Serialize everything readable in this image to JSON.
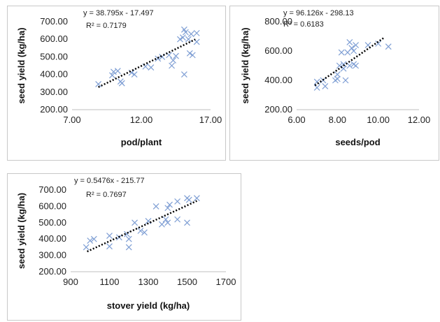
{
  "chart_data": [
    {
      "type": "scatter",
      "xlabel": "pod/plant",
      "ylabel": "seed yield (kg/ha)",
      "xlim": [
        7,
        17
      ],
      "ylim": [
        200,
        700
      ],
      "x_ticks": [
        "7.00",
        "12.00",
        "17.00"
      ],
      "y_ticks": [
        "200.00",
        "300.00",
        "400.00",
        "500.00",
        "600.00",
        "700.00"
      ],
      "trendline": {
        "equation": "y = 38.795x - 17.497",
        "r2": "R² = 0.7179",
        "slope": 38.795,
        "intercept": -17.497,
        "x_range": [
          8.9,
          15.9
        ]
      },
      "marker_color": "#7f9fd4",
      "points": [
        {
          "x": 8.9,
          "y": 345
        },
        {
          "x": 9.9,
          "y": 395
        },
        {
          "x": 10.0,
          "y": 415
        },
        {
          "x": 10.3,
          "y": 420
        },
        {
          "x": 10.5,
          "y": 360
        },
        {
          "x": 10.6,
          "y": 350
        },
        {
          "x": 11.3,
          "y": 410
        },
        {
          "x": 11.5,
          "y": 400
        },
        {
          "x": 12.3,
          "y": 445
        },
        {
          "x": 12.7,
          "y": 440
        },
        {
          "x": 13.2,
          "y": 490
        },
        {
          "x": 13.5,
          "y": 500
        },
        {
          "x": 14.0,
          "y": 510
        },
        {
          "x": 14.2,
          "y": 450
        },
        {
          "x": 14.3,
          "y": 480
        },
        {
          "x": 14.5,
          "y": 505
        },
        {
          "x": 14.8,
          "y": 600
        },
        {
          "x": 15.0,
          "y": 610
        },
        {
          "x": 15.1,
          "y": 655
        },
        {
          "x": 15.1,
          "y": 400
        },
        {
          "x": 15.2,
          "y": 640
        },
        {
          "x": 15.4,
          "y": 600
        },
        {
          "x": 15.5,
          "y": 520
        },
        {
          "x": 15.6,
          "y": 630
        },
        {
          "x": 15.7,
          "y": 510
        },
        {
          "x": 16.0,
          "y": 635
        },
        {
          "x": 16.0,
          "y": 585
        }
      ]
    },
    {
      "type": "scatter",
      "xlabel": "seeds/pod",
      "ylabel": "seed yield (kg/ha)",
      "xlim": [
        6,
        12
      ],
      "ylim": [
        200,
        800
      ],
      "x_ticks": [
        "6.00",
        "8.00",
        "10.00",
        "12.00"
      ],
      "y_ticks": [
        "200.00",
        "400.00",
        "600.00",
        "800.00"
      ],
      "trendline": {
        "equation": "y = 96.126x - 298.13",
        "r2": "R² = 0.6183",
        "slope": 96.126,
        "intercept": -298.13,
        "x_range": [
          6.9,
          10.3
        ]
      },
      "marker_color": "#7f9fd4",
      "points": [
        {
          "x": 7.0,
          "y": 350
        },
        {
          "x": 7.0,
          "y": 390
        },
        {
          "x": 7.3,
          "y": 400
        },
        {
          "x": 7.4,
          "y": 360
        },
        {
          "x": 7.9,
          "y": 400
        },
        {
          "x": 8.0,
          "y": 440
        },
        {
          "x": 8.0,
          "y": 410
        },
        {
          "x": 8.1,
          "y": 500
        },
        {
          "x": 8.2,
          "y": 590
        },
        {
          "x": 8.3,
          "y": 480
        },
        {
          "x": 8.3,
          "y": 510
        },
        {
          "x": 8.4,
          "y": 400
        },
        {
          "x": 8.5,
          "y": 590
        },
        {
          "x": 8.6,
          "y": 500
        },
        {
          "x": 8.6,
          "y": 660
        },
        {
          "x": 8.7,
          "y": 620
        },
        {
          "x": 8.8,
          "y": 600
        },
        {
          "x": 8.8,
          "y": 510
        },
        {
          "x": 8.9,
          "y": 640
        },
        {
          "x": 8.9,
          "y": 500
        },
        {
          "x": 9.5,
          "y": 640
        },
        {
          "x": 10.0,
          "y": 650
        },
        {
          "x": 10.5,
          "y": 630
        }
      ]
    },
    {
      "type": "scatter",
      "xlabel": "stover yield (kg/ha)",
      "ylabel": "seed yield (kg/ha)",
      "xlim": [
        900,
        1700
      ],
      "ylim": [
        200,
        700
      ],
      "x_ticks": [
        "900",
        "1100",
        "1300",
        "1500",
        "1700"
      ],
      "y_ticks": [
        "200.00",
        "300.00",
        "400.00",
        "500.00",
        "600.00",
        "700.00"
      ],
      "trendline": {
        "equation": "y = 0.5476x - 215.77",
        "r2": "R² = 0.7697",
        "slope": 0.5476,
        "intercept": -215.77,
        "x_range": [
          985,
          1550
        ]
      },
      "marker_color": "#7f9fd4",
      "points": [
        {
          "x": 980,
          "y": 350
        },
        {
          "x": 1000,
          "y": 390
        },
        {
          "x": 1020,
          "y": 400
        },
        {
          "x": 1100,
          "y": 420
        },
        {
          "x": 1100,
          "y": 355
        },
        {
          "x": 1150,
          "y": 410
        },
        {
          "x": 1190,
          "y": 430
        },
        {
          "x": 1200,
          "y": 400
        },
        {
          "x": 1200,
          "y": 350
        },
        {
          "x": 1230,
          "y": 500
        },
        {
          "x": 1260,
          "y": 450
        },
        {
          "x": 1280,
          "y": 440
        },
        {
          "x": 1300,
          "y": 510
        },
        {
          "x": 1340,
          "y": 600
        },
        {
          "x": 1370,
          "y": 490
        },
        {
          "x": 1390,
          "y": 520
        },
        {
          "x": 1400,
          "y": 590
        },
        {
          "x": 1400,
          "y": 500
        },
        {
          "x": 1410,
          "y": 610
        },
        {
          "x": 1450,
          "y": 520
        },
        {
          "x": 1450,
          "y": 630
        },
        {
          "x": 1500,
          "y": 500
        },
        {
          "x": 1500,
          "y": 650
        },
        {
          "x": 1510,
          "y": 640
        },
        {
          "x": 1550,
          "y": 650
        }
      ]
    }
  ]
}
